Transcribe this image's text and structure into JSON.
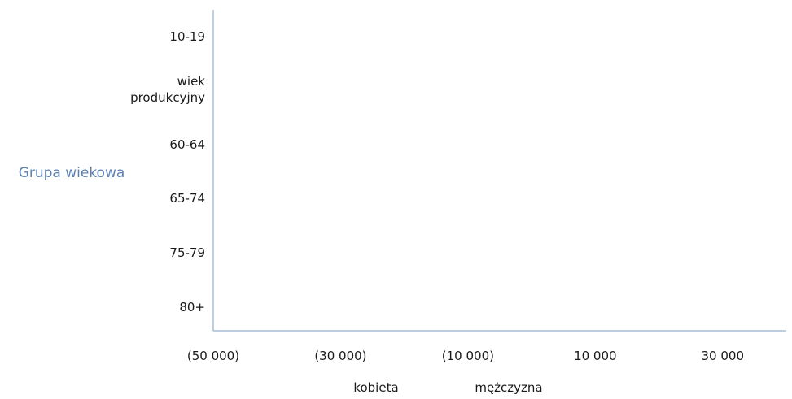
{
  "chart_data": {
    "type": "bar",
    "orientation": "horizontal",
    "stacked": true,
    "title": "",
    "xlabel": "",
    "ylabel": "Grupa wiekowa",
    "categories": [
      "10-19",
      "wiek produkcyjny",
      "60-64",
      "65-74",
      "75-79",
      "80+"
    ],
    "x_ticks": [
      "(50 000)",
      "(30 000)",
      "(10 000)",
      "10 000",
      "30 000"
    ],
    "x_tick_values": [
      -50000,
      -30000,
      -10000,
      10000,
      30000
    ],
    "xlim": [
      -50000,
      40000
    ],
    "series": [
      {
        "name": "kobieta",
        "values": [
          0,
          0,
          0,
          0,
          0,
          0
        ]
      },
      {
        "name": "mężczyzna",
        "values": [
          0,
          0,
          0,
          0,
          0,
          0
        ]
      }
    ],
    "legend": "bottom",
    "grid": false,
    "colors": {
      "axis": "#a9bdd6",
      "ylabel": "#5b7fb0"
    }
  }
}
